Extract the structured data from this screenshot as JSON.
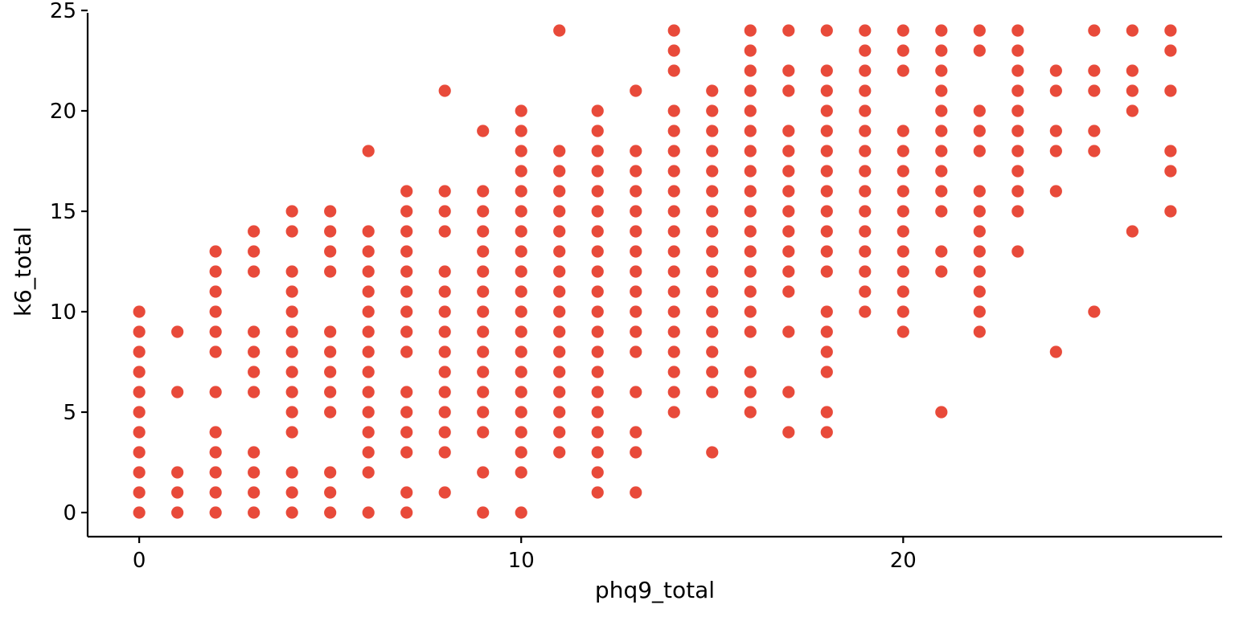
{
  "chart_data": {
    "type": "scatter",
    "title": "",
    "xlabel": "phq9_total",
    "ylabel": "k6_total",
    "xlim": [
      -1.35,
      28.35
    ],
    "ylim": [
      -1.2,
      25.2
    ],
    "xticks": [
      0,
      10,
      20
    ],
    "yticks": [
      0,
      5,
      10,
      15,
      20,
      25
    ],
    "grid": false,
    "legend": "none",
    "point_color": "#E84A3A",
    "points_by_x": [
      {
        "x": 0,
        "y": [
          0,
          1,
          2,
          3,
          4,
          5,
          6,
          7,
          8,
          9,
          10
        ]
      },
      {
        "x": 1,
        "y": [
          0,
          1,
          2,
          6,
          9
        ]
      },
      {
        "x": 2,
        "y": [
          0,
          1,
          2,
          3,
          4,
          6,
          8,
          9,
          10,
          11,
          12,
          13
        ]
      },
      {
        "x": 3,
        "y": [
          0,
          1,
          2,
          3,
          6,
          7,
          8,
          9,
          12,
          13,
          14
        ]
      },
      {
        "x": 4,
        "y": [
          0,
          1,
          2,
          4,
          5,
          6,
          7,
          8,
          9,
          10,
          11,
          12,
          14,
          15
        ]
      },
      {
        "x": 5,
        "y": [
          0,
          1,
          2,
          5,
          6,
          7,
          8,
          9,
          12,
          13,
          14,
          15
        ]
      },
      {
        "x": 6,
        "y": [
          0,
          2,
          3,
          4,
          5,
          6,
          7,
          8,
          9,
          10,
          11,
          12,
          13,
          14,
          18
        ]
      },
      {
        "x": 7,
        "y": [
          0,
          1,
          3,
          4,
          5,
          6,
          8,
          9,
          10,
          11,
          12,
          13,
          14,
          15,
          16
        ]
      },
      {
        "x": 8,
        "y": [
          1,
          3,
          4,
          5,
          6,
          7,
          8,
          9,
          10,
          11,
          12,
          14,
          15,
          16,
          21
        ]
      },
      {
        "x": 9,
        "y": [
          0,
          2,
          4,
          5,
          6,
          7,
          8,
          9,
          10,
          11,
          12,
          13,
          14,
          15,
          16,
          19
        ]
      },
      {
        "x": 10,
        "y": [
          0,
          2,
          3,
          4,
          5,
          6,
          7,
          8,
          9,
          10,
          11,
          12,
          13,
          14,
          15,
          16,
          17,
          18,
          19,
          20
        ]
      },
      {
        "x": 11,
        "y": [
          3,
          4,
          5,
          6,
          7,
          8,
          9,
          10,
          11,
          12,
          13,
          14,
          15,
          16,
          17,
          18,
          24
        ]
      },
      {
        "x": 12,
        "y": [
          1,
          2,
          3,
          4,
          5,
          6,
          7,
          8,
          9,
          10,
          11,
          12,
          13,
          14,
          15,
          16,
          17,
          18,
          19,
          20
        ]
      },
      {
        "x": 13,
        "y": [
          1,
          3,
          4,
          6,
          8,
          9,
          10,
          11,
          12,
          13,
          14,
          15,
          16,
          17,
          18,
          21
        ]
      },
      {
        "x": 14,
        "y": [
          5,
          6,
          7,
          8,
          9,
          10,
          11,
          12,
          13,
          14,
          15,
          16,
          17,
          18,
          19,
          20,
          22,
          23,
          24
        ]
      },
      {
        "x": 15,
        "y": [
          3,
          6,
          7,
          8,
          9,
          10,
          11,
          12,
          13,
          14,
          15,
          16,
          17,
          18,
          19,
          20,
          21
        ]
      },
      {
        "x": 16,
        "y": [
          5,
          6,
          7,
          9,
          10,
          11,
          12,
          13,
          14,
          15,
          16,
          17,
          18,
          19,
          20,
          21,
          22,
          23,
          24
        ]
      },
      {
        "x": 17,
        "y": [
          4,
          6,
          9,
          11,
          12,
          13,
          14,
          15,
          16,
          17,
          18,
          19,
          21,
          22,
          24
        ]
      },
      {
        "x": 18,
        "y": [
          4,
          5,
          7,
          8,
          9,
          10,
          12,
          13,
          14,
          15,
          16,
          17,
          18,
          19,
          20,
          21,
          22,
          24
        ]
      },
      {
        "x": 19,
        "y": [
          10,
          11,
          12,
          13,
          14,
          15,
          16,
          17,
          18,
          19,
          20,
          21,
          22,
          23,
          24
        ]
      },
      {
        "x": 20,
        "y": [
          9,
          10,
          11,
          12,
          13,
          14,
          15,
          16,
          17,
          18,
          19,
          22,
          23,
          24
        ]
      },
      {
        "x": 21,
        "y": [
          5,
          12,
          13,
          15,
          16,
          17,
          18,
          19,
          20,
          21,
          22,
          23,
          24
        ]
      },
      {
        "x": 22,
        "y": [
          9,
          10,
          11,
          12,
          13,
          14,
          15,
          16,
          18,
          19,
          20,
          23,
          24
        ]
      },
      {
        "x": 23,
        "y": [
          13,
          15,
          16,
          17,
          18,
          19,
          20,
          21,
          22,
          23,
          24
        ]
      },
      {
        "x": 24,
        "y": [
          8,
          16,
          18,
          19,
          21,
          22
        ]
      },
      {
        "x": 25,
        "y": [
          10,
          18,
          19,
          21,
          22,
          24
        ]
      },
      {
        "x": 26,
        "y": [
          14,
          20,
          21,
          22,
          24
        ]
      },
      {
        "x": 27,
        "y": [
          15,
          17,
          18,
          21,
          23,
          24
        ]
      }
    ]
  }
}
